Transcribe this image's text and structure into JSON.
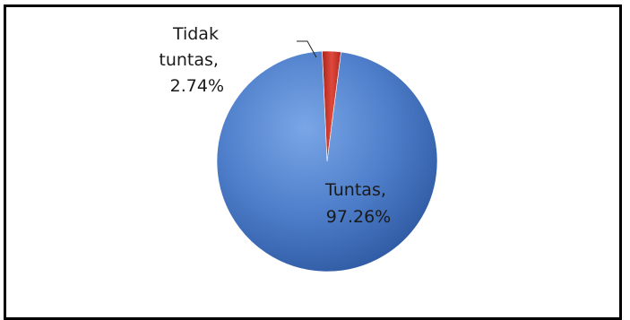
{
  "chart_data": {
    "type": "pie",
    "title": "",
    "slices": [
      {
        "label": "Tuntas",
        "value": 97.26,
        "display": "97.26%",
        "color": "#4F7FCB"
      },
      {
        "label": "Tidak tuntas",
        "value": 2.74,
        "display": "2.74%",
        "color": "#D83A2E"
      }
    ],
    "data_labels": {
      "tuntas": {
        "line1": "Tuntas,",
        "line2": "97.26%"
      },
      "tidak_tuntas": {
        "line1": "Tidak",
        "line2": "tuntas,",
        "line3": "2.74%"
      }
    },
    "legend": "none",
    "grid": false
  }
}
